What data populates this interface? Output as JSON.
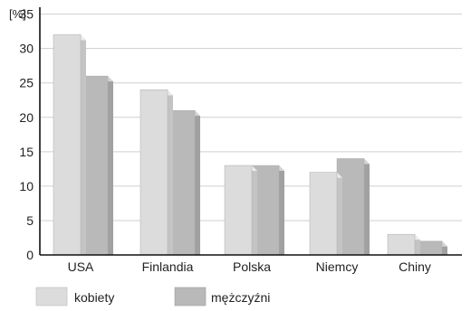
{
  "chart_data": {
    "type": "bar",
    "unit_label": "[%]",
    "categories": [
      "USA",
      "Finlandia",
      "Polska",
      "Niemcy",
      "Chiny"
    ],
    "series": [
      {
        "name": "kobiety",
        "values": [
          32,
          24,
          13,
          12,
          3
        ]
      },
      {
        "name": "mężczyźni",
        "values": [
          26,
          21,
          13,
          14,
          2
        ]
      }
    ],
    "y_ticks": [
      "0",
      "5",
      "10",
      "15",
      "20",
      "25",
      "30",
      "35"
    ],
    "ylim": [
      0,
      36
    ],
    "grid": true,
    "legend_position": "bottom-left",
    "colors": {
      "kobiety": "#dcdcdc",
      "mezczyzni": "#b9b9b9",
      "grid": "#cfcfcf",
      "axis": "#111111"
    }
  }
}
